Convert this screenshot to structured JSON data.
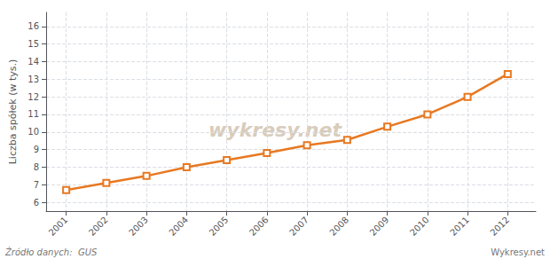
{
  "chart_data": {
    "type": "line",
    "ylabel": "Liczba spółek (w tys.)",
    "x": [
      2001,
      2002,
      2003,
      2004,
      2005,
      2006,
      2007,
      2008,
      2009,
      2010,
      2011,
      2012
    ],
    "values": [
      6.7,
      7.1,
      7.5,
      8.0,
      8.4,
      8.8,
      9.25,
      9.55,
      10.3,
      11.0,
      12.0,
      13.3
    ],
    "color": "#E87820",
    "marker": "square",
    "xlim": [
      2000.5,
      2012.7
    ],
    "xticks": [
      2001,
      2002,
      2003,
      2004,
      2005,
      2006,
      2007,
      2008,
      2009,
      2010,
      2011,
      2012
    ],
    "ylim": [
      5.5,
      16.8
    ],
    "yticks": [
      6,
      7,
      8,
      9,
      10,
      11,
      12,
      13,
      14,
      15,
      16
    ],
    "grid": true,
    "annotations": [
      {
        "text": "wykresy.net",
        "color": "#D8CCBC"
      },
      {
        "text": "Źródło danych:  GUS",
        "color": "#777777"
      },
      {
        "text": "Wykresy.net",
        "color": "#777777"
      }
    ]
  }
}
